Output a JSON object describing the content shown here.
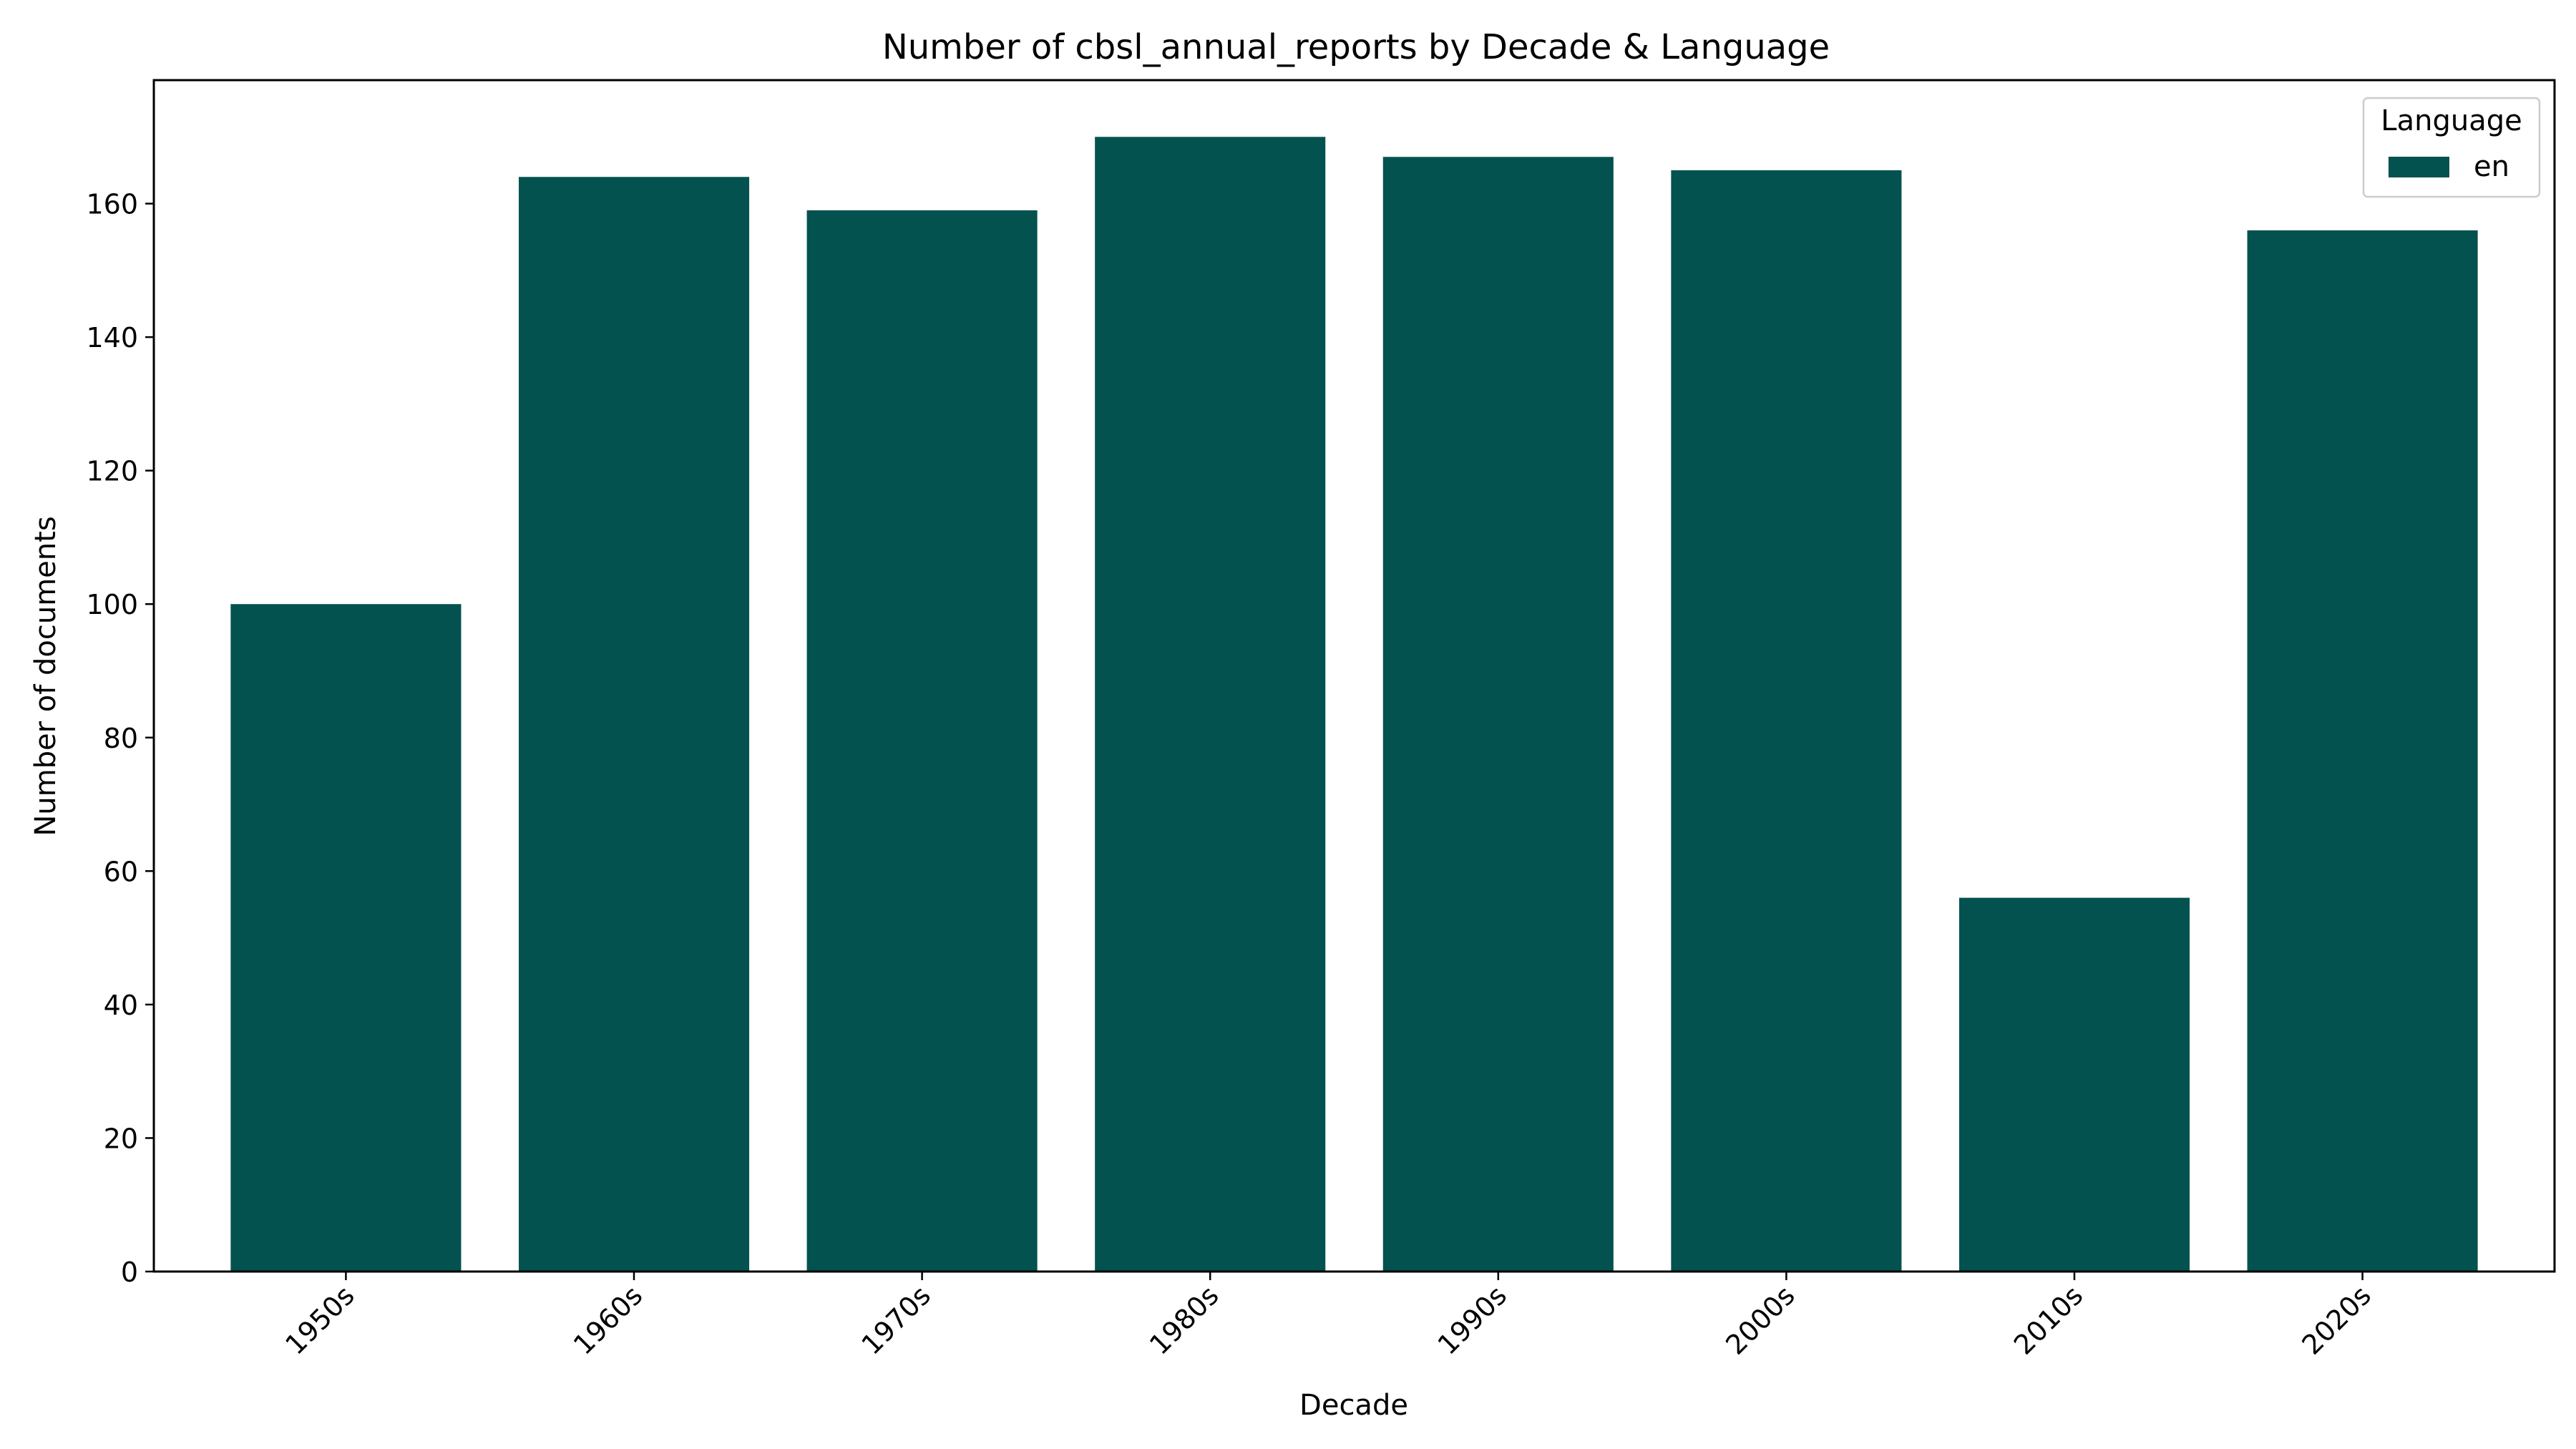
{
  "chart_data": {
    "type": "bar",
    "title": "Number of cbsl_annual_reports by Decade & Language",
    "xlabel": "Decade",
    "ylabel": "Number of documents",
    "categories": [
      "1950s",
      "1960s",
      "1970s",
      "1980s",
      "1990s",
      "2000s",
      "2010s",
      "2020s"
    ],
    "series": [
      {
        "name": "en",
        "values": [
          100,
          164,
          159,
          170,
          167,
          165,
          56,
          156
        ],
        "color": "#03524f"
      }
    ],
    "ylim": [
      0,
      178.5
    ],
    "yticks": [
      0,
      20,
      40,
      60,
      80,
      100,
      120,
      140,
      160
    ],
    "xtick_rotation": 45,
    "grid": false,
    "legend": {
      "title": "Language",
      "placement": "top-right"
    }
  }
}
